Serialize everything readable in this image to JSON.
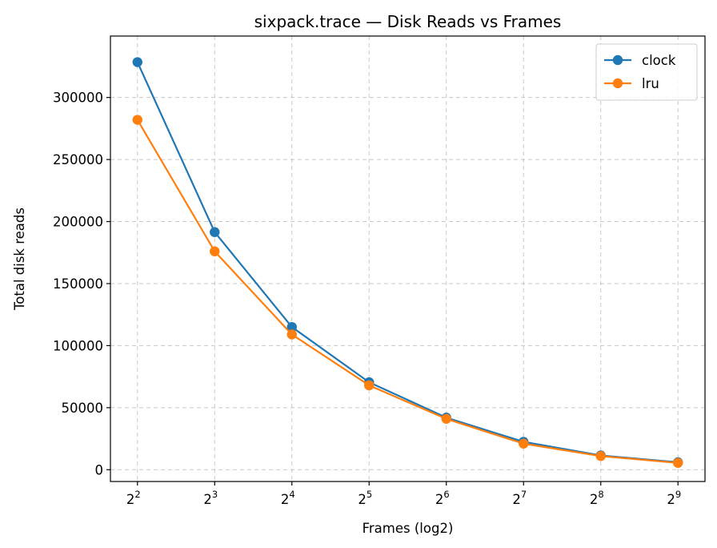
{
  "chart_data": {
    "type": "line",
    "title": "sixpack.trace — Disk Reads vs Frames",
    "xlabel": "Frames (log2)",
    "ylabel": "Total disk reads",
    "x_scale": "log2",
    "x": [
      4,
      8,
      16,
      32,
      64,
      128,
      256,
      512
    ],
    "x_tick_labels": [
      {
        "base": "2",
        "exp": "2"
      },
      {
        "base": "2",
        "exp": "3"
      },
      {
        "base": "2",
        "exp": "4"
      },
      {
        "base": "2",
        "exp": "5"
      },
      {
        "base": "2",
        "exp": "6"
      },
      {
        "base": "2",
        "exp": "7"
      },
      {
        "base": "2",
        "exp": "8"
      },
      {
        "base": "2",
        "exp": "9"
      }
    ],
    "y_ticks": [
      0,
      50000,
      100000,
      150000,
      200000,
      250000,
      300000
    ],
    "y_tick_labels": [
      "0",
      "50000",
      "100000",
      "150000",
      "200000",
      "250000",
      "300000"
    ],
    "ylim": [
      -9500,
      349500
    ],
    "grid": true,
    "legend_position": "top-right",
    "series": [
      {
        "name": "clock",
        "color": "#1f77b4",
        "values": [
          328500,
          191500,
          115000,
          70500,
          42000,
          22500,
          11500,
          6000
        ]
      },
      {
        "name": "lru",
        "color": "#ff7f0e",
        "values": [
          282000,
          176000,
          109000,
          68000,
          41000,
          21000,
          11000,
          5500
        ]
      }
    ]
  }
}
